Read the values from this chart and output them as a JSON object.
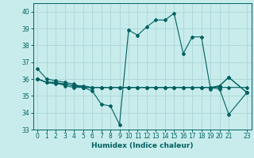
{
  "xlabel": "Humidex (Indice chaleur)",
  "ylabel": "",
  "bg_color": "#c8ecec",
  "grid_color": "#b0d8d8",
  "line_color": "#006060",
  "xlim": [
    -0.5,
    23.5
  ],
  "ylim": [
    33,
    40.5
  ],
  "yticks": [
    33,
    34,
    35,
    36,
    37,
    38,
    39,
    40
  ],
  "xticks": [
    0,
    1,
    2,
    3,
    4,
    5,
    6,
    7,
    8,
    9,
    10,
    11,
    12,
    13,
    14,
    15,
    16,
    17,
    18,
    19,
    20,
    21,
    23
  ],
  "lines": [
    [
      36.6,
      36.0,
      35.9,
      35.8,
      35.7,
      35.5,
      35.3,
      34.5,
      34.4,
      33.3,
      38.9,
      38.6,
      39.1,
      39.5,
      39.5,
      39.9,
      37.5,
      38.5,
      38.5,
      35.4,
      35.6,
      36.1,
      35.2
    ],
    [
      36.0,
      35.8,
      35.8,
      35.7,
      35.6,
      35.5,
      35.5,
      35.5,
      35.5,
      35.5,
      35.5,
      35.5,
      35.5,
      35.5,
      35.5,
      35.5,
      35.5,
      35.5,
      35.5,
      35.5,
      35.5,
      35.5,
      35.5
    ],
    [
      36.0,
      35.8,
      35.7,
      35.7,
      35.6,
      35.6,
      35.5,
      35.5,
      35.5,
      35.5,
      35.5,
      35.5,
      35.5,
      35.5,
      35.5,
      35.5,
      35.5,
      35.5,
      35.5,
      35.5,
      35.6,
      36.1,
      35.2
    ],
    [
      36.0,
      35.8,
      35.8,
      35.6,
      35.5,
      35.5,
      35.5,
      35.5,
      35.5,
      35.5,
      35.5,
      35.5,
      35.5,
      35.5,
      35.5,
      35.5,
      35.5,
      35.5,
      35.5,
      35.5,
      35.4,
      33.9,
      35.2
    ]
  ],
  "x_vals": [
    0,
    1,
    2,
    3,
    4,
    5,
    6,
    7,
    8,
    9,
    10,
    11,
    12,
    13,
    14,
    15,
    16,
    17,
    18,
    19,
    20,
    21,
    23
  ]
}
